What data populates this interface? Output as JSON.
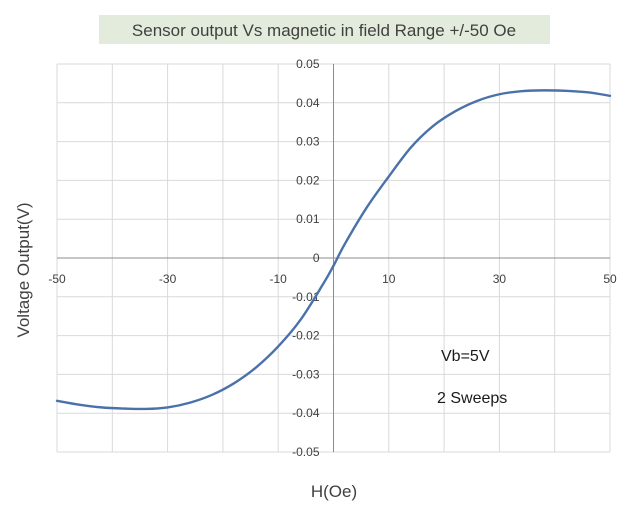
{
  "chart_data": {
    "type": "line",
    "title": "Sensor output  Vs magnetic in field Range +/-50 Oe",
    "xlabel": "H(Oe)",
    "ylabel": "Voltage Output(V)",
    "xlim": [
      -50,
      50
    ],
    "ylim": [
      -0.05,
      0.05
    ],
    "x_ticks": [
      -50,
      -30,
      -10,
      10,
      30,
      50
    ],
    "x_tick_labels": [
      "-50",
      "-30",
      "-10",
      "10",
      "30",
      "50"
    ],
    "y_ticks": [
      0.05,
      0.04,
      0.03,
      0.02,
      0.01,
      0,
      -0.01,
      -0.02,
      -0.03,
      -0.04,
      -0.05
    ],
    "y_tick_labels": [
      "0.05",
      "0.04",
      "0.03",
      "0.02",
      "0.01",
      "0",
      "-0.01",
      "-0.02",
      "-0.03",
      "-0.04",
      "-0.05"
    ],
    "grid": true,
    "series": [
      {
        "color": "#4a72a8",
        "x": [
          -50,
          -46,
          -42,
          -38,
          -34,
          -30,
          -26,
          -22,
          -18,
          -14,
          -10,
          -6,
          -2,
          0,
          2,
          6,
          10,
          14,
          18,
          22,
          26,
          30,
          34,
          38,
          42,
          46,
          50
        ],
        "y": [
          -0.0368,
          -0.0378,
          -0.0385,
          -0.0388,
          -0.0389,
          -0.0385,
          -0.0373,
          -0.0353,
          -0.0323,
          -0.0282,
          -0.0228,
          -0.016,
          -0.007,
          -0.002,
          0.0035,
          0.013,
          0.021,
          0.0285,
          0.034,
          0.0378,
          0.0405,
          0.0422,
          0.043,
          0.0432,
          0.0431,
          0.0427,
          0.0418
        ]
      }
    ],
    "annotations": [
      "Vb=5V",
      "2 Sweeps"
    ],
    "title_box_color": "#e3ecdc"
  }
}
